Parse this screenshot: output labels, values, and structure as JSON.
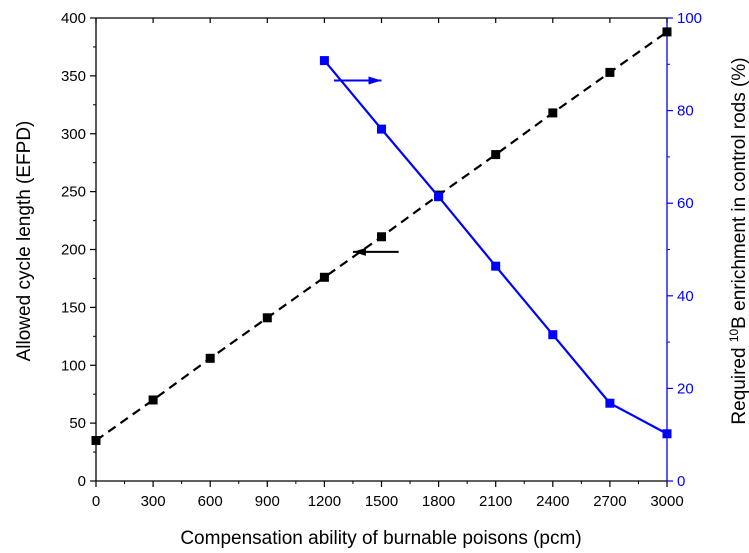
{
  "chart_data": {
    "type": "line",
    "title": "",
    "xlabel": "Compensation ability of burnable poisons (pcm)",
    "ylabel_left": "Allowed cycle length (EFPD)",
    "ylabel_right": {
      "prefix": "Required ",
      "superscript": "10",
      "suffix": "B enrichment in control rods (%)"
    },
    "xlim": [
      0,
      3000
    ],
    "ylim_left": [
      0,
      400
    ],
    "ylim_right": [
      0,
      100
    ],
    "x_ticks": [
      "0",
      "300",
      "600",
      "900",
      "1200",
      "1500",
      "1800",
      "2100",
      "2400",
      "2700",
      "3000"
    ],
    "y_left_ticks": [
      "0",
      "50",
      "100",
      "150",
      "200",
      "250",
      "300",
      "350",
      "400"
    ],
    "y_right_ticks": [
      "0",
      "20",
      "40",
      "60",
      "80",
      "100"
    ],
    "grid": false,
    "colors": {
      "left_series": "#000000",
      "right_series": "#0000ff",
      "right_axis": "#0000ff"
    },
    "series": [
      {
        "axis": "left",
        "line_style": "dashed",
        "marker": "square",
        "x": [
          0,
          300,
          600,
          900,
          1200,
          1500,
          1800,
          2100,
          2400,
          2700,
          3000
        ],
        "y": [
          35,
          70,
          106,
          141,
          176,
          211,
          247,
          282,
          318,
          353,
          388
        ]
      },
      {
        "axis": "right",
        "line_style": "solid",
        "marker": "square",
        "x": [
          1200,
          1500,
          1800,
          2100,
          2400,
          2700,
          3000
        ],
        "y": [
          90.8,
          76,
          61.4,
          46.4,
          31.6,
          16.8,
          10.2
        ]
      }
    ],
    "annotations": [
      {
        "type": "arrow",
        "direction": "left",
        "points_to_axis": "left",
        "x_start": 1590,
        "x_end": 1350,
        "y": 198,
        "y_axis": "left",
        "color": "#000000"
      },
      {
        "type": "arrow",
        "direction": "right",
        "points_to_axis": "right",
        "x_start": 1250,
        "x_end": 1500,
        "y": 86.5,
        "y_axis": "right",
        "color": "#0000ff"
      }
    ]
  }
}
